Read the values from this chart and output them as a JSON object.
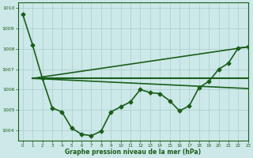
{
  "bg_color": "#cce8e8",
  "grid_color": "#aacccc",
  "line_color": "#1a5e1a",
  "xlabel": "Graphe pression niveau de la mer (hPa)",
  "xlim": [
    -0.5,
    23
  ],
  "ylim": [
    1003.5,
    1010.3
  ],
  "yticks": [
    1004,
    1005,
    1006,
    1007,
    1008,
    1009,
    1010
  ],
  "xticks": [
    0,
    1,
    2,
    3,
    4,
    5,
    6,
    7,
    8,
    9,
    10,
    11,
    12,
    13,
    14,
    15,
    16,
    17,
    18,
    19,
    20,
    21,
    22,
    23
  ],
  "line1": {
    "x": [
      0,
      1,
      2,
      3,
      4,
      5,
      6,
      7,
      8,
      9,
      10,
      11,
      12,
      13,
      14,
      15,
      16,
      17,
      18,
      19,
      20,
      21,
      22,
      23
    ],
    "y": [
      1009.7,
      1008.2,
      1006.55,
      1005.1,
      1004.9,
      1004.1,
      1003.8,
      1003.73,
      1003.95,
      1004.9,
      1005.15,
      1005.4,
      1006.0,
      1005.85,
      1005.8,
      1005.45,
      1004.95,
      1005.2,
      1006.1,
      1006.4,
      1007.0,
      1007.3,
      1008.05,
      1008.1
    ],
    "marker": "D",
    "markersize": 2.5,
    "linewidth": 1.2
  },
  "line2": {
    "x": [
      1,
      23
    ],
    "y": [
      1006.55,
      1006.55
    ],
    "linewidth": 1.5
  },
  "line3": {
    "x": [
      1,
      23
    ],
    "y": [
      1006.55,
      1006.05
    ],
    "linewidth": 1.2
  },
  "line4": {
    "x": [
      1,
      23
    ],
    "y": [
      1006.55,
      1008.1
    ],
    "linewidth": 1.2
  }
}
